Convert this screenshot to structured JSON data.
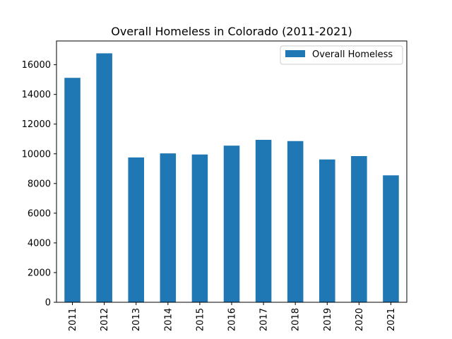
{
  "chart_data": {
    "type": "bar",
    "title": "Overall Homeless in Colorado (2011-2021)",
    "xlabel": "",
    "ylabel": "",
    "categories": [
      "2011",
      "2012",
      "2013",
      "2014",
      "2015",
      "2016",
      "2017",
      "2018",
      "2019",
      "2020",
      "2021"
    ],
    "series": [
      {
        "name": "Overall Homeless",
        "values": [
          15116,
          16768,
          9754,
          10028,
          9953,
          10550,
          10940,
          10857,
          9619,
          9846,
          8549
        ],
        "color": "#1f77b4"
      }
    ],
    "ylim": [
      0,
      17600
    ],
    "yticks": [
      0,
      2000,
      4000,
      6000,
      8000,
      10000,
      12000,
      14000,
      16000
    ],
    "grid": false,
    "legend_position": "top-right"
  }
}
